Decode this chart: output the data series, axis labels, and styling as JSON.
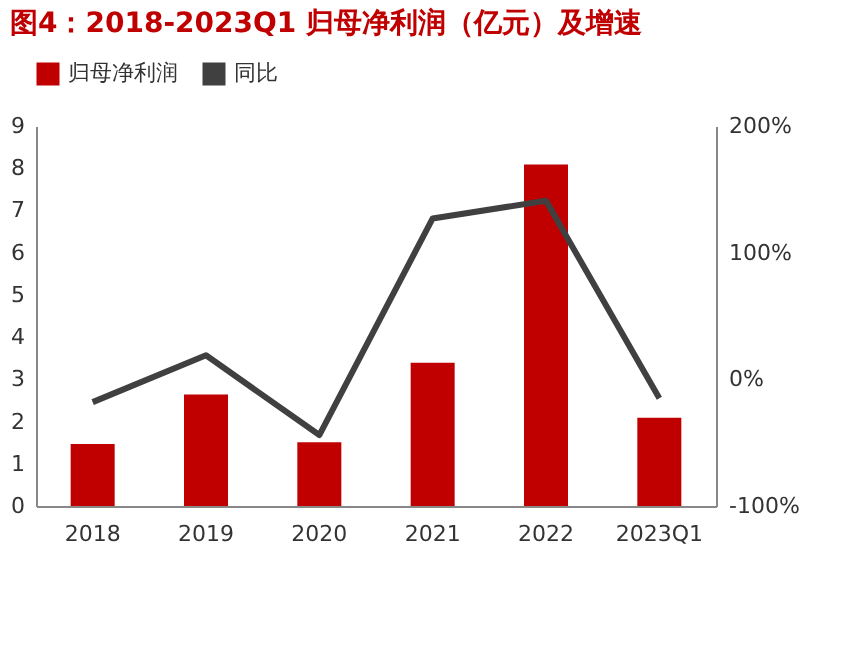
{
  "chart_data": {
    "type": "bar",
    "title": "图4：2018-2023Q1 归母净利润（亿元）及增速",
    "categories": [
      "2018",
      "2019",
      "2020",
      "2021",
      "2022",
      "2023Q1"
    ],
    "series": [
      {
        "name": "归母净利润",
        "color": "#c00000",
        "values": [
          1.47,
          2.64,
          1.51,
          3.39,
          8.09,
          2.09
        ]
      },
      {
        "name": "同比",
        "type": "line",
        "axis": "y2",
        "color": "#404040",
        "values": [
          -18,
          19,
          -44,
          127,
          141,
          -15
        ]
      }
    ],
    "ylim": [
      0,
      9
    ],
    "yticks": [
      0,
      1,
      2,
      3,
      4,
      5,
      6,
      7,
      8,
      9
    ],
    "y2lim": [
      -100,
      200
    ],
    "y2ticks": [
      {
        "value": -100,
        "label": "-100%"
      },
      {
        "value": 0,
        "label": "0%"
      },
      {
        "value": 100,
        "label": "100%"
      },
      {
        "value": 200,
        "label": "200%"
      }
    ],
    "legend": "top",
    "grid": false
  }
}
